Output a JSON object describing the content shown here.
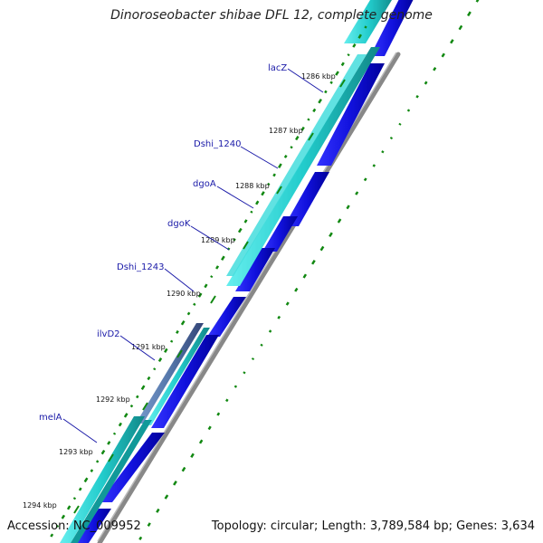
{
  "title": "Dinoroseobacter shibae DFL 12, complete genome",
  "footer": {
    "accession": "Accession: NC_009952",
    "summary": "Topology: circular; Length: 3,789,584 bp; Genes: 3,634"
  },
  "colors": {
    "background": "#ffffff",
    "backbone": "#777777",
    "cds_blue": "#1111dd",
    "cds_cyan": "#22cccc",
    "cds_steel": "#5577aa",
    "tick_green": "#118811",
    "label_blue": "#1a1aa8"
  },
  "genes": [
    {
      "name": "lacZ"
    },
    {
      "name": "Dshi_1240"
    },
    {
      "name": "dgoA"
    },
    {
      "name": "dgoK"
    },
    {
      "name": "Dshi_1243"
    },
    {
      "name": "ilvD2"
    },
    {
      "name": "melA"
    }
  ],
  "ticks": [
    {
      "label": "1286 kbp"
    },
    {
      "label": "1287 kbp"
    },
    {
      "label": "1288 kbp"
    },
    {
      "label": "1289 kbp"
    },
    {
      "label": "1290 kbp"
    },
    {
      "label": "1291 kbp"
    },
    {
      "label": "1292 kbp"
    },
    {
      "label": "1293 kbp"
    },
    {
      "label": "1294 kbp"
    }
  ]
}
